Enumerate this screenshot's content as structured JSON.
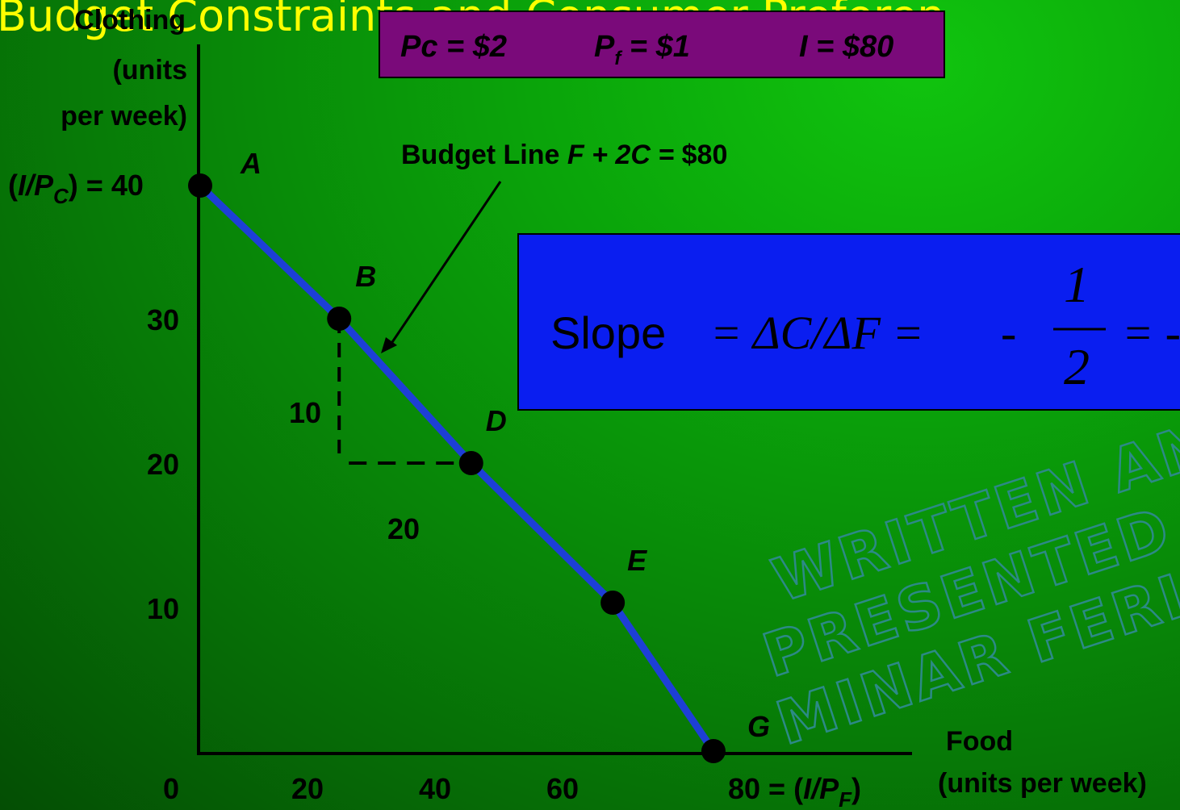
{
  "title": "Budget Constraints and Consumer Preferen",
  "prices": {
    "pc_label": "Pc = $2",
    "pf_label_p": "P",
    "pf_label_sub": "f",
    "pf_label_rest": " = $1",
    "income_label": "I = $80"
  },
  "y_axis": {
    "title_line1": "Clothing",
    "title_line2": "(units",
    "title_line3": "per week)",
    "intercept_open": "(",
    "intercept_i": "I/P",
    "intercept_sub": "C",
    "intercept_close": ") = 40"
  },
  "x_axis": {
    "title_line1": "Food",
    "title_line2": "(units per week)",
    "intercept_pre": "80 = (",
    "intercept_i": "I/P",
    "intercept_sub": "F",
    "intercept_close": ")"
  },
  "budget_line_label": {
    "prefix": "Budget Line  ",
    "equation": "F + 2C = ",
    "amount": "$80"
  },
  "slope_box": {
    "word": "Slope",
    "expr": "= ΔC/ΔF =",
    "minus": "-",
    "numerator": "1",
    "denominator": "2",
    "trailing": "= -"
  },
  "rise_label": "10",
  "run_label": "20",
  "watermark": {
    "line1": "WRITTEN AND",
    "line2": "PRESENTED BY",
    "line3": "MINAR FERICH"
  },
  "colors": {
    "budget_line": "#1d3fd6",
    "point": "#000000",
    "price_box": "#7a0a7a",
    "slope_box": "#0a1ef0",
    "title": "#ffff00"
  },
  "chart_data": {
    "type": "line",
    "title": "Budget Constraints and Consumer Preferen",
    "xlabel": "Food (units per week)",
    "ylabel": "Clothing (units per week)",
    "xlim": [
      0,
      80
    ],
    "ylim": [
      0,
      40
    ],
    "x_ticks": [
      {
        "value": 0,
        "label": "0"
      },
      {
        "value": 20,
        "label": "20"
      },
      {
        "value": 40,
        "label": "40"
      },
      {
        "value": 60,
        "label": "60"
      }
    ],
    "y_ticks": [
      {
        "value": 10,
        "label": "10"
      },
      {
        "value": 20,
        "label": "20"
      },
      {
        "value": 30,
        "label": "30"
      }
    ],
    "series": [
      {
        "points": [
          {
            "label": "A",
            "x": 0,
            "y": 40
          },
          {
            "label": "B",
            "x": 20,
            "y": 30
          },
          {
            "label": "D",
            "x": 40,
            "y": 20
          },
          {
            "label": "E",
            "x": 60,
            "y": 10
          },
          {
            "label": "G",
            "x": 80,
            "y": 0
          }
        ]
      }
    ],
    "grid": false,
    "annotations": [
      {
        "type": "rise",
        "from": [
          20,
          30
        ],
        "to": [
          20,
          20
        ],
        "label": "10"
      },
      {
        "type": "run",
        "from": [
          20,
          20
        ],
        "to": [
          40,
          20
        ],
        "label": "20"
      }
    ]
  }
}
